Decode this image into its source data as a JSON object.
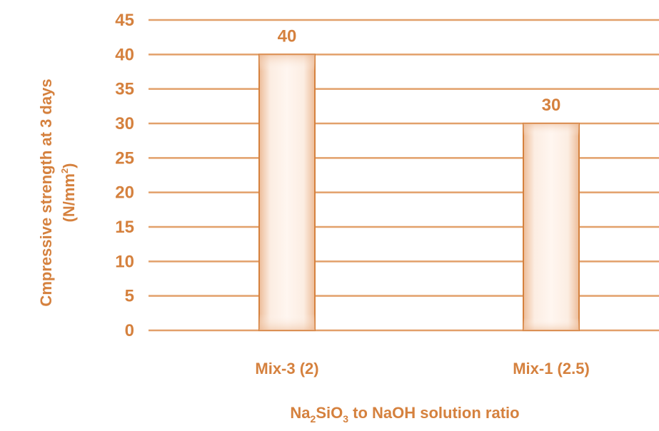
{
  "chart_data": {
    "type": "bar",
    "categories": [
      "Mix-3 (2)",
      "Mix-1 (2.5)"
    ],
    "values": [
      40,
      30
    ],
    "data_labels": [
      "40",
      "30"
    ],
    "ylabel_line1": "Cmpressive strength at 3 days",
    "ylabel_line2_prefix": "(N/mm",
    "ylabel_line2_sup": "2",
    "ylabel_line2_suffix": ")",
    "xlabel_parts": {
      "na": "Na",
      "sub1": "2",
      "sio": "SiO",
      "sub2": "3",
      "rest": " to NaOH solution ratio"
    },
    "yticks": [
      "0",
      "5",
      "10",
      "15",
      "20",
      "25",
      "30",
      "35",
      "40",
      "45"
    ],
    "ylim": [
      0,
      45
    ],
    "grid": true,
    "colors": {
      "accent": "#D5813E",
      "grid": "#E2A06A",
      "bar_fill_center": "#FFF6F0",
      "bar_fill_edge": "#EDBC98",
      "bar_border": "#D5813E"
    }
  }
}
